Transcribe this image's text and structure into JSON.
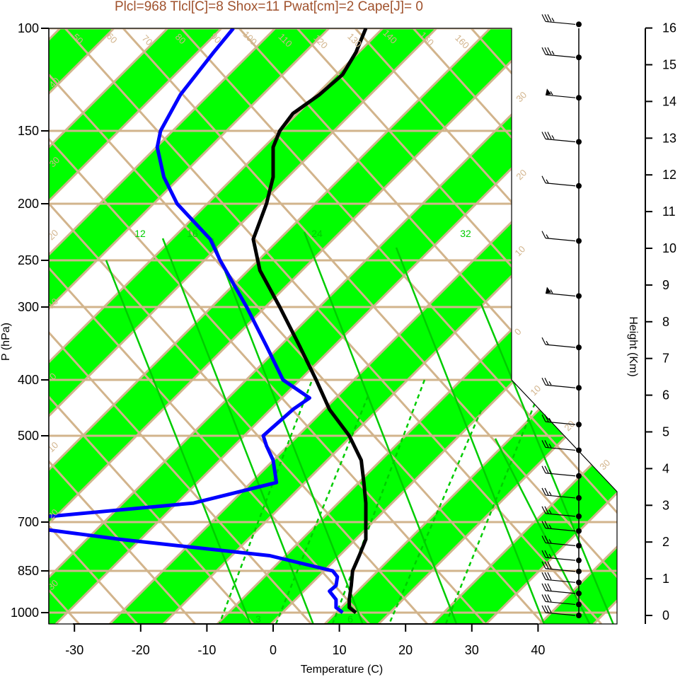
{
  "chart_data": {
    "type": "line",
    "title": "Plcl=968 Tlcl[C]=8 Shox=11 Pwat[cm]=2 Cape[J]= 0",
    "xlabel": "Temperature (C)",
    "ylabel": "P (hPa)",
    "y2label": "Height (Km)",
    "xlim": [
      -34,
      52
    ],
    "ylim_hpa": [
      1050,
      100
    ],
    "x_ticks": [
      "-30",
      "-20",
      "-10",
      "0",
      "10",
      "20",
      "30",
      "40"
    ],
    "x_tick_values": [
      -30,
      -20,
      -10,
      0,
      10,
      20,
      30,
      40
    ],
    "pressure_ticks": [
      "100",
      "150",
      "200",
      "250",
      "300",
      "400",
      "500",
      "700",
      "850",
      "1000"
    ],
    "pressure_tick_values": [
      100,
      150,
      200,
      250,
      300,
      400,
      500,
      700,
      850,
      1000
    ],
    "height_ticks": [
      "0",
      "1",
      "2",
      "3",
      "4",
      "5",
      "6",
      "7",
      "8",
      "9",
      "10",
      "11",
      "12",
      "13",
      "14",
      "15",
      "16"
    ],
    "height_tick_values": [
      0,
      1,
      2,
      3,
      4,
      5,
      6,
      7,
      8,
      9,
      10,
      11,
      12,
      13,
      14,
      15,
      16
    ],
    "isotherm_labels": [
      "50",
      "60",
      "70",
      "80",
      "90",
      "100",
      "110",
      "120",
      "130",
      "140",
      "150",
      "160"
    ],
    "mixing_ratio_labels": [
      "12",
      "16",
      "24",
      "32",
      "3",
      "6"
    ],
    "dry_adiabat_labels": [
      "40",
      "30",
      "20",
      "10",
      "0",
      "10",
      "20",
      "30"
    ],
    "side_adiabat_labels": [
      "30",
      "20",
      "10",
      "0",
      "10",
      "20",
      "30"
    ],
    "series": [
      {
        "name": "",
        "color": "#000000",
        "p": [
          1000,
          980,
          950,
          900,
          850,
          800,
          750,
          700,
          650,
          600,
          550,
          500,
          450,
          400,
          350,
          300,
          260,
          230,
          200,
          180,
          160,
          150,
          140,
          130,
          120,
          110,
          100
        ],
        "t": [
          12.5,
          11.5,
          11.5,
          11.8,
          12,
          13,
          14,
          14,
          14,
          13.7,
          13.3,
          11.5,
          8.5,
          6.5,
          4,
          1,
          -2,
          -3,
          -1,
          0,
          0,
          1,
          3,
          7,
          10.5,
          12.5,
          14
        ]
      },
      {
        "name": "",
        "color": "#0000ff",
        "p": [
          1000,
          980,
          950,
          920,
          900,
          870,
          850,
          800,
          750,
          700,
          650,
          600,
          550,
          520,
          500,
          450,
          430,
          400,
          350,
          300,
          250,
          230,
          200,
          180,
          160,
          150,
          130,
          110,
          100
        ],
        "t": [
          10.5,
          9.5,
          9.5,
          8.5,
          9.5,
          9.7,
          9,
          -0.5,
          -23,
          -43,
          -12,
          0.5,
          0,
          -1,
          -1.5,
          3,
          5.5,
          1.5,
          -1,
          -4,
          -8,
          -9.5,
          -14.5,
          -16.5,
          -17.5,
          -17,
          -14,
          -9,
          -6
        ]
      }
    ],
    "wind_barbs": [
      {
        "height_km": 0,
        "speed_kt": 30
      },
      {
        "height_km": 0.3,
        "speed_kt": 30
      },
      {
        "height_km": 0.6,
        "speed_kt": 30
      },
      {
        "height_km": 0.9,
        "speed_kt": 30
      },
      {
        "height_km": 1.2,
        "speed_kt": 30
      },
      {
        "height_km": 1.5,
        "speed_kt": 25
      },
      {
        "height_km": 1.9,
        "speed_kt": 25
      },
      {
        "height_km": 2.3,
        "speed_kt": 25
      },
      {
        "height_km": 2.7,
        "speed_kt": 25
      },
      {
        "height_km": 3.2,
        "speed_kt": 25
      },
      {
        "height_km": 3.8,
        "speed_kt": 25
      },
      {
        "height_km": 4.5,
        "speed_kt": 25
      },
      {
        "height_km": 5.2,
        "speed_kt": 25
      },
      {
        "height_km": 6.2,
        "speed_kt": 25
      },
      {
        "height_km": 7.3,
        "speed_kt": 15
      },
      {
        "height_km": 8.7,
        "speed_kt": 55
      },
      {
        "height_km": 10.2,
        "speed_kt": 15
      },
      {
        "height_km": 11.7,
        "speed_kt": 15
      },
      {
        "height_km": 12.9,
        "speed_kt": 35
      },
      {
        "height_km": 14.1,
        "speed_kt": 55
      },
      {
        "height_km": 15.2,
        "speed_kt": 35
      },
      {
        "height_km": 16.1,
        "speed_kt": 35
      }
    ]
  },
  "colors": {
    "title": "#a0522d",
    "isotherm": "#d2b48c",
    "band": "#00ff00",
    "mixing_ratio": "#00cc00",
    "temperature": "#000000",
    "dewpoint": "#0000ff"
  }
}
